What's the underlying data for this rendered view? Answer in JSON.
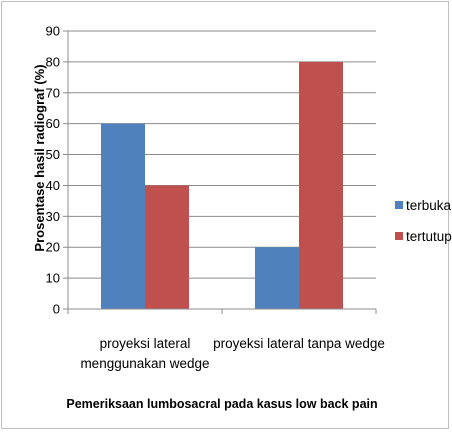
{
  "chart_data": {
    "type": "bar",
    "categories": [
      [
        "proyeksi lateral",
        "menggunakan wedge"
      ],
      [
        "proyeksi lateral tanpa wedge"
      ]
    ],
    "series": [
      {
        "name": "terbuka",
        "values": [
          60,
          20
        ],
        "color": "#4f81bd"
      },
      {
        "name": "tertutup",
        "values": [
          40,
          80
        ],
        "color": "#c0504d"
      }
    ],
    "yticks": [
      "0",
      "10",
      "20",
      "30",
      "40",
      "50",
      "60",
      "70",
      "80",
      "90"
    ],
    "ylim": [
      0,
      90
    ],
    "ylabel": "Prosentase hasil radiograf (%)",
    "xlabel": "Pemeriksaan lumbosacral pada kasus low back pain",
    "grid": true,
    "legend_position": "right"
  }
}
